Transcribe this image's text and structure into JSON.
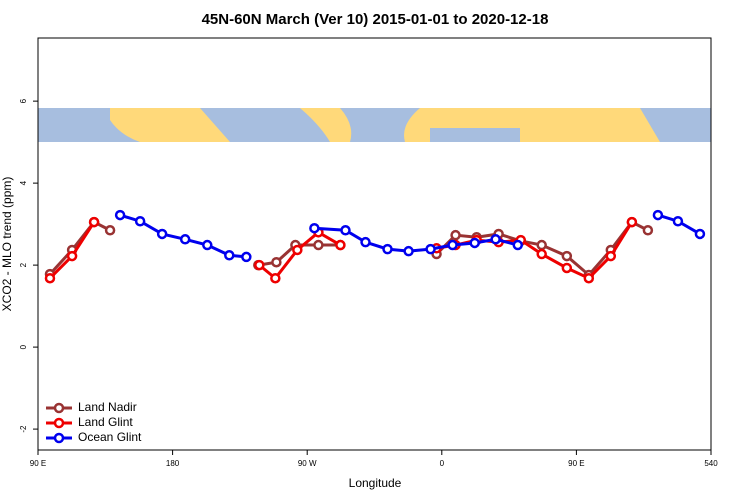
{
  "chart_data": {
    "type": "line",
    "title": "45N-60N March (Ver 10)   2015-01-01 to 2020-12-18",
    "x_label": "Longitude",
    "y_label": "XCO2 - MLO trend (ppm)",
    "xlim": [
      90,
      540
    ],
    "ylim": [
      -2.51,
      7.54
    ],
    "xticks": [
      {
        "value": 90,
        "label": "90 E"
      },
      180,
      {
        "value": 270,
        "label": "90 W"
      },
      0,
      {
        "value": 450,
        "label": "90 E"
      },
      540
    ],
    "yticks": [
      -2,
      0,
      2,
      4,
      6
    ],
    "legend": "bottom-left",
    "series": [
      {
        "name": "Land Nadir",
        "color": "#993333",
        "x": [
          98,
          112.8,
          127.5,
          138.2,
          null,
          237.3,
          249.4,
          262.1,
          277.5,
          292.2,
          null,
          356.5,
          369.2,
          383.3,
          398,
          412.8,
          426.8,
          443.6,
          458.3,
          473,
          487.1,
          497.8
        ],
        "values": [
          1.78,
          2.37,
          3.05,
          2.85,
          null,
          2.0,
          2.07,
          2.49,
          2.49,
          2.49,
          null,
          2.27,
          2.73,
          2.68,
          2.76,
          2.59,
          2.49,
          2.22,
          1.76,
          2.37,
          3.05,
          2.85
        ]
      },
      {
        "name": "Land Glint",
        "color": "#ee0000",
        "x": [
          98,
          112.8,
          127.5,
          null,
          238,
          248.7,
          263.4,
          277.5,
          292.2,
          null,
          356.5,
          369.2,
          383.3,
          398,
          412.8,
          426.8,
          443.6,
          458.3,
          473,
          487.1
        ],
        "values": [
          1.68,
          2.22,
          3.05,
          null,
          2.0,
          1.68,
          2.37,
          2.8,
          2.49,
          null,
          2.41,
          2.49,
          2.61,
          2.56,
          2.61,
          2.27,
          1.93,
          1.68,
          2.22,
          3.05
        ]
      },
      {
        "name": "Ocean Glint",
        "color": "#0000ee",
        "x": [
          144.9,
          158.3,
          173,
          188.4,
          203.2,
          217.9,
          229.3,
          null,
          274.8,
          295.6,
          309,
          323.7,
          337.8,
          352.5,
          367.2,
          382,
          396,
          410.8,
          null,
          504.5,
          517.9,
          532.6
        ],
        "values": [
          3.22,
          3.07,
          2.76,
          2.63,
          2.49,
          2.24,
          2.2,
          null,
          2.9,
          2.85,
          2.56,
          2.39,
          2.34,
          2.39,
          2.49,
          2.54,
          2.63,
          2.49,
          null,
          3.22,
          3.07,
          2.76
        ]
      }
    ]
  }
}
